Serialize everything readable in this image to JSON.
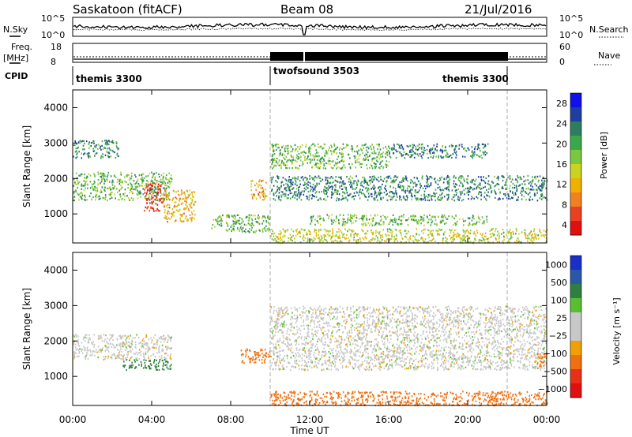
{
  "header": {
    "station": "Saskatoon (fitACF)",
    "beam": "Beam 08",
    "date": "21/Jul/2016"
  },
  "top_panels": {
    "nsky_label": "N.Sky",
    "nsearch_label": "N.Search",
    "nsky_ticks": [
      "10^5",
      "10^0"
    ],
    "nsearch_ticks": [
      "10^5",
      "10^0"
    ],
    "freq_label_line1": "Freq.",
    "freq_label_line2": "[MHz]",
    "freq_ticks": [
      "18",
      "8"
    ],
    "nave_label": "Nave",
    "nave_ticks": [
      "60",
      "0"
    ],
    "cpid_label": "CPID",
    "cpid_segments": [
      {
        "name": "themis 3300",
        "start_hour": 0,
        "end_hour": 10
      },
      {
        "name": "twofsound 3503",
        "start_hour": 10,
        "end_hour": 22
      },
      {
        "name": "themis 3300",
        "start_hour": 22,
        "end_hour": 24
      }
    ]
  },
  "power_panel": {
    "ylabel": "Slant Range [km]",
    "yticks": [
      "4000",
      "3000",
      "2000",
      "1000"
    ],
    "colorbar_label": "Power [dB]",
    "colorbar_ticks": [
      "28",
      "24",
      "20",
      "16",
      "12",
      "8",
      "4"
    ],
    "colors": [
      "#1010e8",
      "#1f3fa0",
      "#2e7d60",
      "#3aa84a",
      "#7bc840",
      "#c8d420",
      "#f0b000",
      "#f08020",
      "#e84020",
      "#e01010"
    ]
  },
  "velocity_panel": {
    "ylabel": "Slant Range [km]",
    "yticks": [
      "4000",
      "3000",
      "2000",
      "1000"
    ],
    "colorbar_label": "Velocity [m s⁻¹]",
    "colorbar_ticks": [
      "1000",
      "500",
      "100",
      "25",
      "−25",
      "−100",
      "−500",
      "−1000"
    ],
    "colors": [
      "#1a2ec8",
      "#2a58a8",
      "#2e8040",
      "#58c030",
      "#c8c8c8",
      "#c8c8c8",
      "#f0a000",
      "#f07010",
      "#e83018",
      "#e01010"
    ]
  },
  "xaxis": {
    "label": "Time UT",
    "ticks": [
      "00:00",
      "04:00",
      "08:00",
      "12:00",
      "16:00",
      "20:00",
      "00:00"
    ]
  },
  "chart_data": {
    "type": "heatmap",
    "title": "Saskatoon (fitACF) Beam 08 21/Jul/2016",
    "xlabel": "Time UT",
    "ylabel": "Slant Range [km]",
    "xlim_hours": [
      0,
      24
    ],
    "ylim_km": [
      180,
      4500
    ],
    "grid": false,
    "mode_change_hours": [
      10,
      22
    ],
    "power_echo_regions": [
      {
        "t0": 0.0,
        "t1": 5.0,
        "r0": 1400,
        "r1": 2200,
        "power_db": 12
      },
      {
        "t0": 3.6,
        "t1": 4.6,
        "r0": 1100,
        "r1": 1900,
        "power_db": 28
      },
      {
        "t0": 4.6,
        "t1": 6.2,
        "r0": 800,
        "r1": 1700,
        "power_db": 20
      },
      {
        "t0": 0.0,
        "t1": 2.3,
        "r0": 2600,
        "r1": 3100,
        "power_db": 8
      },
      {
        "t0": 7.0,
        "t1": 10.0,
        "r0": 500,
        "r1": 1000,
        "power_db": 12
      },
      {
        "t0": 9.0,
        "t1": 9.8,
        "r0": 1400,
        "r1": 2000,
        "power_db": 20
      },
      {
        "t0": 10.0,
        "t1": 24.0,
        "r0": 200,
        "r1": 600,
        "power_db": 16
      },
      {
        "t0": 10.0,
        "t1": 24.0,
        "r0": 1400,
        "r1": 2100,
        "power_db": 8
      },
      {
        "t0": 10.0,
        "t1": 16.0,
        "r0": 2300,
        "r1": 3000,
        "power_db": 12
      },
      {
        "t0": 12.0,
        "t1": 21.0,
        "r0": 700,
        "r1": 1000,
        "power_db": 12
      },
      {
        "t0": 16.0,
        "t1": 21.0,
        "r0": 2600,
        "r1": 3000,
        "power_db": 8
      }
    ],
    "velocity_echo_regions": [
      {
        "t0": 0.0,
        "t1": 5.0,
        "r0": 1500,
        "r1": 2200,
        "velocity": 0
      },
      {
        "t0": 2.5,
        "t1": 5.0,
        "r0": 1200,
        "r1": 1500,
        "velocity": 100
      },
      {
        "t0": 8.5,
        "t1": 10.0,
        "r0": 1400,
        "r1": 1800,
        "velocity": -300
      },
      {
        "t0": 10.0,
        "t1": 24.0,
        "r0": 200,
        "r1": 600,
        "velocity": -150
      },
      {
        "t0": 10.0,
        "t1": 24.0,
        "r0": 1200,
        "r1": 3000,
        "velocity": 0
      },
      {
        "t0": 23.5,
        "t1": 24.0,
        "r0": 1300,
        "r1": 1700,
        "velocity": -400
      }
    ]
  }
}
